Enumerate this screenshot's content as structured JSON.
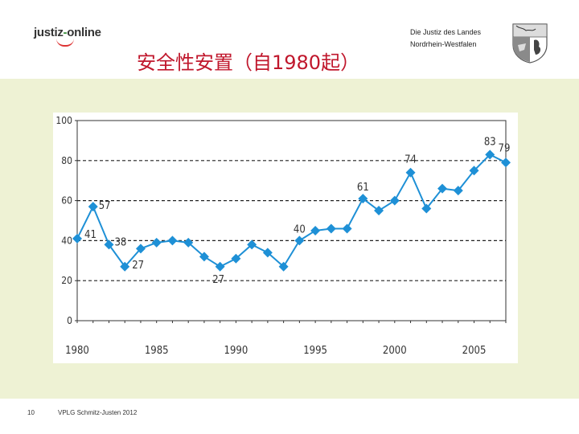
{
  "header": {
    "logo_prefix": "justiz",
    "logo_hyphen": "-",
    "logo_suffix": "online",
    "state_line1": "Die Justiz des Landes",
    "state_line2": "Nordrhein-Westfalen",
    "crest_icon": "nrw-coat-of-arms-icon"
  },
  "slide": {
    "title": "安全性安置（自1980起）"
  },
  "footer": {
    "page_number": "10",
    "author": "VPLG Schmitz-Justen 2012"
  },
  "colors": {
    "title": "#c0172c",
    "band": "#eef2d4",
    "series": "#1e90d6",
    "axis": "#333333"
  },
  "chart_data": {
    "type": "line",
    "x": [
      1980,
      1981,
      1982,
      1983,
      1984,
      1985,
      1986,
      1987,
      1988,
      1989,
      1990,
      1991,
      1992,
      1993,
      1994,
      1995,
      1996,
      1997,
      1998,
      1999,
      2000,
      2001,
      2002,
      2003,
      2004,
      2005,
      2006,
      2007
    ],
    "series": [
      {
        "values": [
          41,
          57,
          38,
          27,
          36,
          39,
          40,
          39,
          32,
          27,
          31,
          38,
          34,
          27,
          40,
          45,
          46,
          46,
          61,
          55,
          60,
          74,
          56,
          66,
          65,
          75,
          83,
          79
        ]
      }
    ],
    "data_labels": [
      {
        "year": 1980,
        "value": 41,
        "text": "41"
      },
      {
        "year": 1981,
        "value": 57,
        "text": "57"
      },
      {
        "year": 1982,
        "value": 38,
        "text": "38"
      },
      {
        "year": 1983,
        "value": 27,
        "text": "27"
      },
      {
        "year": 1989,
        "value": 27,
        "text": "27"
      },
      {
        "year": 1994,
        "value": 40,
        "text": "40"
      },
      {
        "year": 1998,
        "value": 61,
        "text": "61"
      },
      {
        "year": 2001,
        "value": 74,
        "text": "74"
      },
      {
        "year": 2006,
        "value": 83,
        "text": "83"
      },
      {
        "year": 2007,
        "value": 79,
        "text": "79"
      }
    ],
    "x_ticks": [
      "1980",
      "1985",
      "1990",
      "1995",
      "2000",
      "2005"
    ],
    "y_ticks": [
      "0",
      "20",
      "40",
      "60",
      "80",
      "100"
    ],
    "xlim": [
      1980,
      2007
    ],
    "ylim": [
      0,
      100
    ],
    "grid": "dashed horizontal lines at 20, 40, 60, 80",
    "marker": "diamond"
  }
}
